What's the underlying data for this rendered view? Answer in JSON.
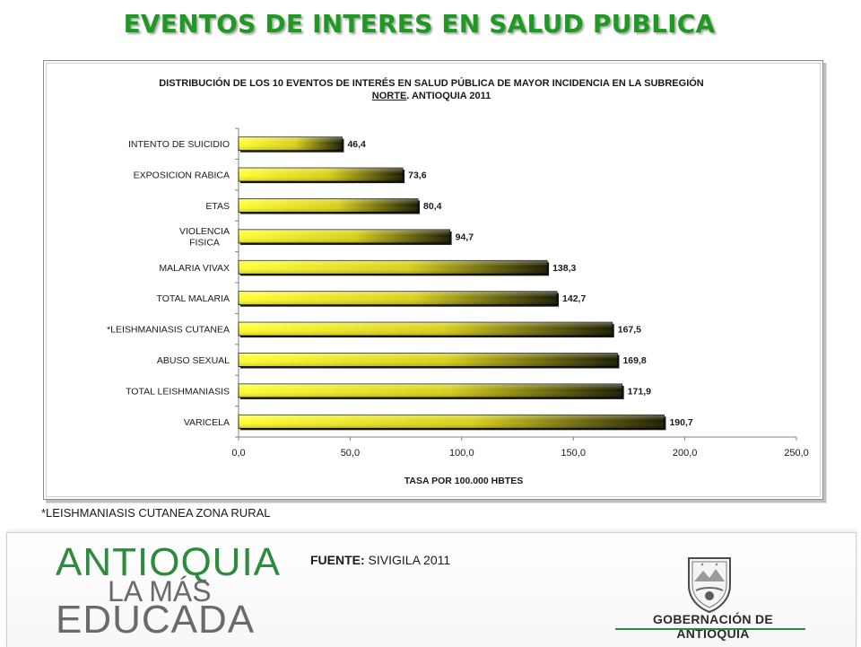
{
  "slide": {
    "title": "EVENTOS DE INTERES EN SALUD PUBLICA"
  },
  "chart_data": {
    "type": "bar",
    "orientation": "horizontal",
    "title_line1": "DISTRIBUCIÓN DE LOS 10 EVENTOS DE INTERÉS EN SALUD PÚBLICA DE MAYOR INCIDENCIA EN LA SUBREGIÓN",
    "title_line2_highlight": "NORTE",
    "title_line2_rest": ". ANTIOQUIA 2011",
    "categories": [
      "INTENTO DE SUICIDIO",
      "EXPOSICION RABICA",
      "ETAS",
      "VIOLENCIA FISICA",
      "MALARIA VIVAX",
      "TOTAL MALARIA",
      "*LEISHMANIASIS CUTANEA",
      "ABUSO SEXUAL",
      "TOTAL LEISHMANIASIS",
      "VARICELA"
    ],
    "category_lines": [
      [
        "INTENTO DE SUICIDIO"
      ],
      [
        "EXPOSICION RABICA"
      ],
      [
        "ETAS"
      ],
      [
        "VIOLENCIA",
        "FISICA"
      ],
      [
        "MALARIA VIVAX"
      ],
      [
        "TOTAL MALARIA"
      ],
      [
        "*LEISHMANIASIS CUTANEA"
      ],
      [
        "ABUSO SEXUAL"
      ],
      [
        "TOTAL LEISHMANIASIS"
      ],
      [
        "VARICELA"
      ]
    ],
    "values": [
      46.4,
      73.6,
      80.4,
      94.7,
      138.3,
      142.7,
      167.5,
      169.8,
      171.9,
      190.7
    ],
    "value_labels": [
      "46,4",
      "73,6",
      "80,4",
      "94,7",
      "138,3",
      "142,7",
      "167,5",
      "169,8",
      "171,9",
      "190,7"
    ],
    "xlabel": "TASA POR 100.000 HBTES",
    "xlim": [
      0,
      250
    ],
    "xticks": [
      0,
      50,
      100,
      150,
      200,
      250
    ],
    "xtick_labels": [
      "0,0",
      "50,0",
      "100,0",
      "150,0",
      "200,0",
      "250,0"
    ],
    "grid": false,
    "legend": "none",
    "colors": {
      "bar_start": "#ffff33",
      "bar_end": "#1a1a00",
      "bar_outline": "#000000"
    }
  },
  "footnote": "*LEISHMANIASIS CUTANEA ZONA RURAL",
  "source": {
    "label": "FUENTE:",
    "text": " SIVIGILA 2011"
  },
  "logo": {
    "line1": "ANTIOQUIA",
    "line2": "LA MÁS",
    "line3": "EDUCADA"
  },
  "government": {
    "label": "GOBERNACIÓN DE ANTIOQUIA"
  },
  "colors": {
    "title_green": "#1e9a22",
    "logo_green": "#2e8b3e",
    "logo_gray": "#6a6a6a"
  }
}
